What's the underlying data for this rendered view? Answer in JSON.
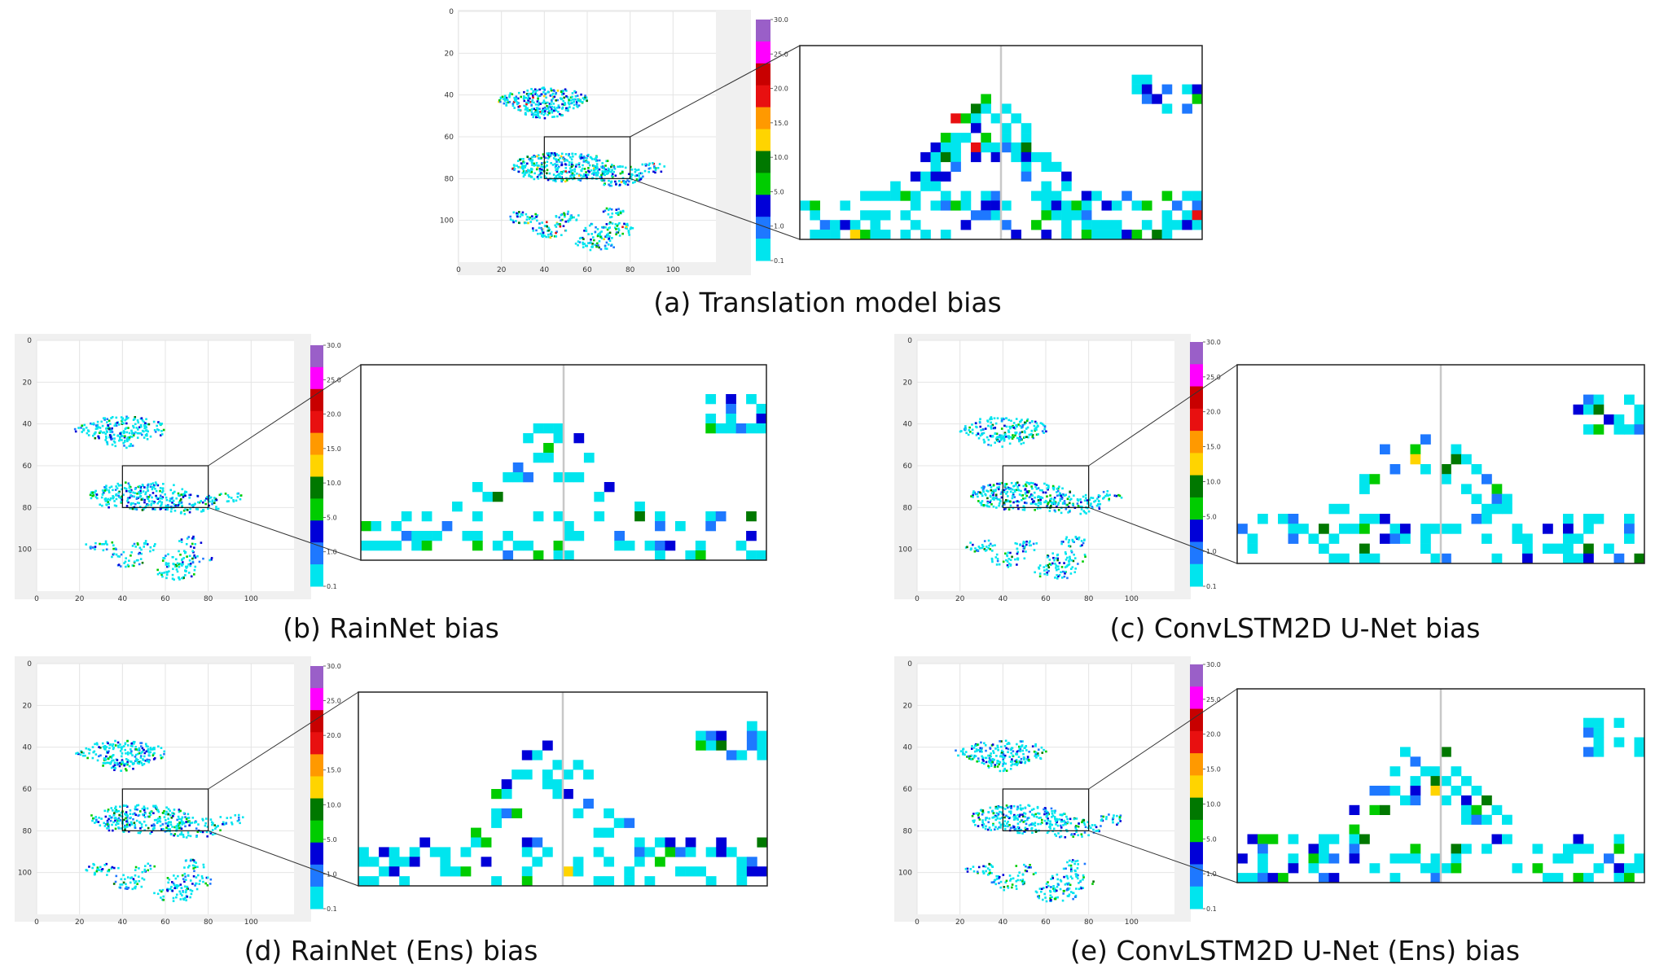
{
  "captions": {
    "a": "(a) Translation model bias",
    "b": "(b) RainNet bias",
    "c": "(c) ConvLSTM2D U-Net bias",
    "d": "(d) RainNet (Ens) bias",
    "e": "(e) ConvLSTM2D U-Net (Ens) bias"
  },
  "axes": {
    "x_ticks": [
      "0",
      "20",
      "40",
      "60",
      "80",
      "100"
    ],
    "y_ticks": [
      "0",
      "20",
      "40",
      "60",
      "80",
      "100"
    ]
  },
  "colorbar": {
    "tick_labels": [
      "30.0",
      "25.0",
      "20.0",
      "15.0",
      "10.0",
      "5.0",
      "1.0",
      "0.1"
    ],
    "colors": [
      "#9a5fc8",
      "#ff00ff",
      "#c80000",
      "#e81010",
      "#ff9900",
      "#ffd400",
      "#007800",
      "#00cc00",
      "#0000d8",
      "#1e78ff",
      "#00e5ee"
    ]
  },
  "chart_data": [
    {
      "type": "heatmap",
      "panel": "a",
      "title": "(a) Translation model bias",
      "xlabel": "",
      "ylabel": "",
      "xlim": [
        0,
        120
      ],
      "ylim": [
        120,
        0
      ],
      "colorbar_range": [
        0.1,
        30.0
      ],
      "zoom_box": {
        "x": [
          40,
          80
        ],
        "y": [
          60,
          80
        ]
      },
      "grid": true
    },
    {
      "type": "heatmap",
      "panel": "b",
      "title": "(b) RainNet bias",
      "xlabel": "",
      "ylabel": "",
      "xlim": [
        0,
        120
      ],
      "ylim": [
        120,
        0
      ],
      "colorbar_range": [
        0.1,
        30.0
      ],
      "zoom_box": {
        "x": [
          40,
          80
        ],
        "y": [
          60,
          80
        ]
      },
      "grid": true
    },
    {
      "type": "heatmap",
      "panel": "c",
      "title": "(c) ConvLSTM2D U-Net bias",
      "xlabel": "",
      "ylabel": "",
      "xlim": [
        0,
        120
      ],
      "ylim": [
        120,
        0
      ],
      "colorbar_range": [
        0.1,
        30.0
      ],
      "zoom_box": {
        "x": [
          40,
          80
        ],
        "y": [
          60,
          80
        ]
      },
      "grid": true
    },
    {
      "type": "heatmap",
      "panel": "d",
      "title": "(d) RainNet (Ens) bias",
      "xlabel": "",
      "ylabel": "",
      "xlim": [
        0,
        120
      ],
      "ylim": [
        120,
        0
      ],
      "colorbar_range": [
        0.1,
        30.0
      ],
      "zoom_box": {
        "x": [
          40,
          80
        ],
        "y": [
          60,
          80
        ]
      },
      "grid": true
    },
    {
      "type": "heatmap",
      "panel": "e",
      "title": "(e) ConvLSTM2D U-Net (Ens) bias",
      "xlabel": "",
      "ylabel": "",
      "xlim": [
        0,
        120
      ],
      "ylim": [
        120,
        0
      ],
      "colorbar_range": [
        0.1,
        30.0
      ],
      "zoom_box": {
        "x": [
          40,
          80
        ],
        "y": [
          60,
          80
        ]
      },
      "grid": true
    }
  ]
}
